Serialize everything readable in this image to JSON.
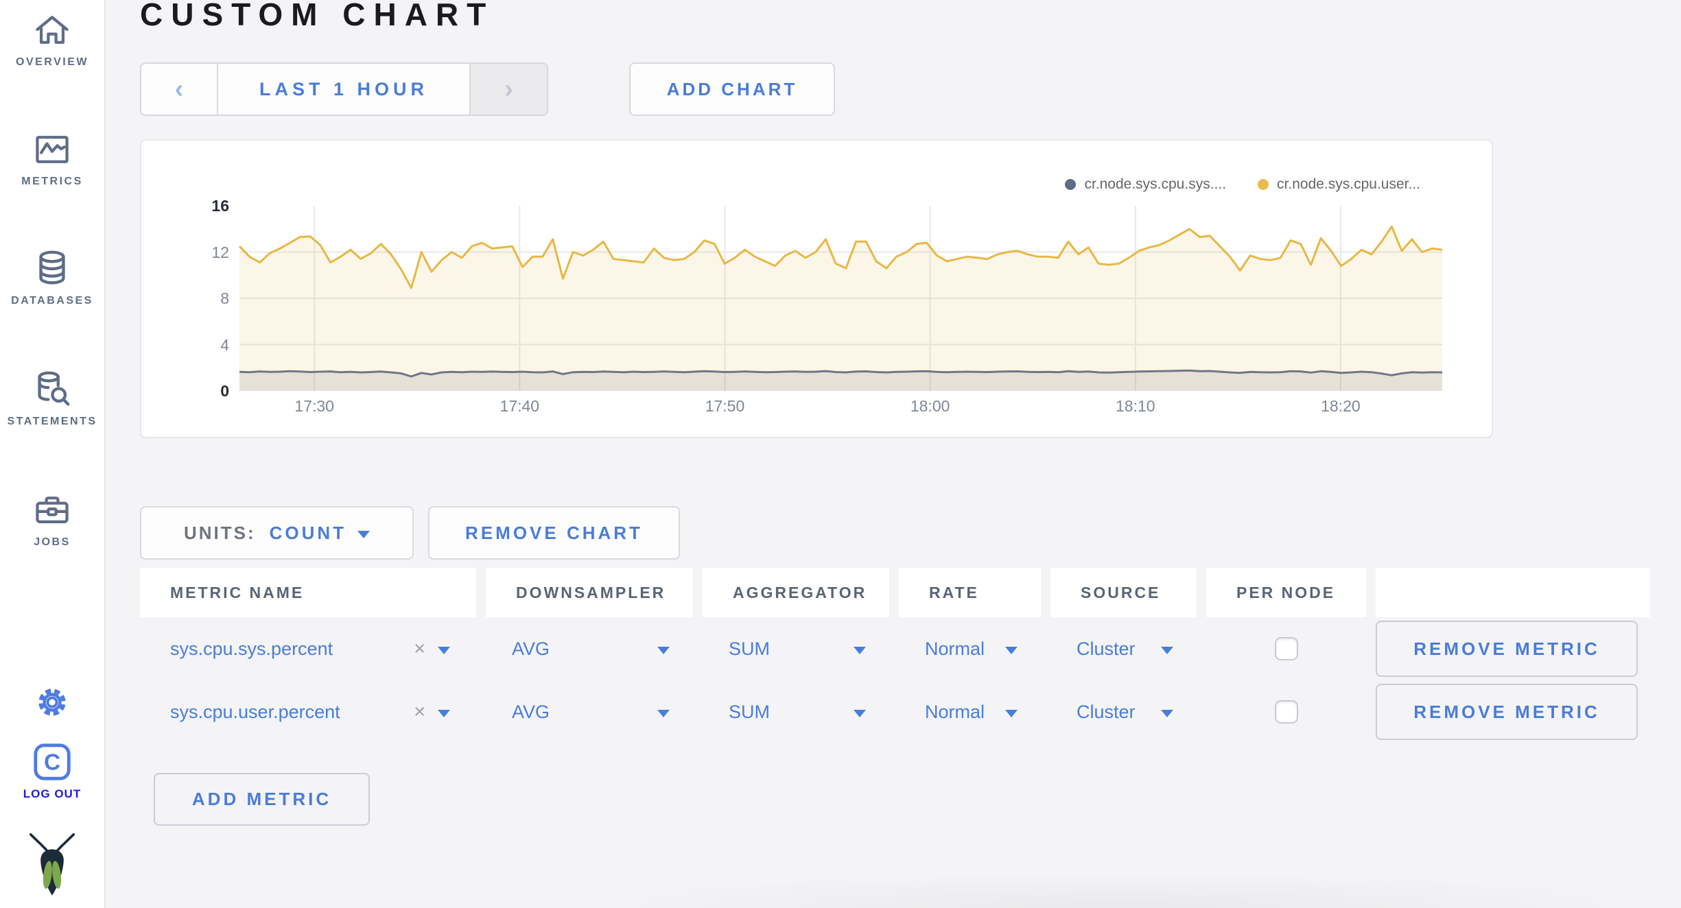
{
  "page": {
    "title": "CUSTOM CHART"
  },
  "sidebar": {
    "items": [
      {
        "label": "OVERVIEW"
      },
      {
        "label": "METRICS"
      },
      {
        "label": "DATABASES"
      },
      {
        "label": "STATEMENTS"
      },
      {
        "label": "JOBS"
      }
    ],
    "logout_label": "LOG OUT"
  },
  "toolbar": {
    "time_range": {
      "prev": "‹",
      "label": "LAST 1 HOUR",
      "next": "›"
    },
    "add_chart_label": "ADD CHART"
  },
  "chart_controls": {
    "units_label": "UNITS:",
    "units_value": "COUNT",
    "remove_chart_label": "REMOVE CHART",
    "add_metric_label": "ADD METRIC"
  },
  "metrics_table": {
    "columns": [
      "METRIC NAME",
      "DOWNSAMPLER",
      "AGGREGATOR",
      "RATE",
      "SOURCE",
      "PER NODE",
      ""
    ],
    "rows": [
      {
        "metric_name": "sys.cpu.sys.percent",
        "clear": "×",
        "downsampler": "AVG",
        "aggregator": "SUM",
        "rate": "Normal",
        "source": "Cluster",
        "per_node_checked": false,
        "remove_label": "REMOVE METRIC"
      },
      {
        "metric_name": "sys.cpu.user.percent",
        "clear": "×",
        "downsampler": "AVG",
        "aggregator": "SUM",
        "rate": "Normal",
        "source": "Cluster",
        "per_node_checked": false,
        "remove_label": "REMOVE METRIC"
      }
    ]
  },
  "chart_data": {
    "type": "area",
    "title": "",
    "xlabel": "",
    "ylabel": "",
    "ylim": [
      0,
      16
    ],
    "y_ticks": [
      0,
      4,
      8,
      12,
      16
    ],
    "x_tick_labels": [
      "17:30",
      "17:40",
      "17:50",
      "18:00",
      "18:10",
      "18:20"
    ],
    "x_tick_interval_min": 10,
    "x_first_tick_offset_min": 3.65,
    "x_total_min": 58.6,
    "interval_seconds": 30,
    "grid": true,
    "legend_position": "top-right",
    "series": [
      {
        "name": "cr.node.sys.cpu.sys....",
        "dot_color": "#5F6C87",
        "color": "#6E7787",
        "fill": "rgba(95,108,135,0.16)",
        "values": [
          1.65,
          1.62,
          1.68,
          1.64,
          1.66,
          1.7,
          1.67,
          1.63,
          1.66,
          1.68,
          1.62,
          1.65,
          1.6,
          1.63,
          1.67,
          1.6,
          1.52,
          1.25,
          1.55,
          1.42,
          1.6,
          1.65,
          1.62,
          1.66,
          1.64,
          1.67,
          1.65,
          1.63,
          1.66,
          1.62,
          1.6,
          1.68,
          1.45,
          1.62,
          1.65,
          1.63,
          1.67,
          1.64,
          1.62,
          1.66,
          1.63,
          1.65,
          1.68,
          1.64,
          1.62,
          1.66,
          1.7,
          1.67,
          1.63,
          1.65,
          1.68,
          1.64,
          1.61,
          1.63,
          1.66,
          1.68,
          1.64,
          1.66,
          1.71,
          1.63,
          1.6,
          1.67,
          1.69,
          1.63,
          1.6,
          1.64,
          1.66,
          1.69,
          1.7,
          1.65,
          1.62,
          1.64,
          1.66,
          1.64,
          1.63,
          1.66,
          1.68,
          1.69,
          1.65,
          1.63,
          1.64,
          1.62,
          1.7,
          1.65,
          1.67,
          1.6,
          1.59,
          1.61,
          1.64,
          1.67,
          1.69,
          1.7,
          1.72,
          1.74,
          1.76,
          1.7,
          1.72,
          1.66,
          1.6,
          1.55,
          1.64,
          1.61,
          1.6,
          1.62,
          1.7,
          1.68,
          1.58,
          1.7,
          1.64,
          1.56,
          1.6,
          1.66,
          1.62,
          1.5,
          1.35,
          1.52,
          1.62,
          1.58,
          1.62,
          1.6
        ]
      },
      {
        "name": "cr.node.sys.cpu.user...",
        "dot_color": "#EABB4D",
        "color": "#E7B844",
        "fill": "rgba(234,187,76,0.13)",
        "values": [
          12.5,
          11.6,
          11.1,
          11.9,
          12.3,
          12.8,
          13.3,
          13.35,
          12.6,
          11.1,
          11.6,
          12.2,
          11.4,
          11.9,
          12.7,
          11.8,
          10.5,
          8.9,
          12.0,
          10.3,
          11.3,
          12.0,
          11.5,
          12.5,
          12.8,
          12.3,
          12.4,
          12.5,
          10.7,
          11.6,
          11.6,
          13.1,
          9.7,
          12.0,
          11.7,
          12.2,
          12.9,
          11.4,
          11.3,
          11.2,
          11.1,
          12.3,
          11.5,
          11.3,
          11.4,
          12.0,
          13.0,
          12.7,
          11.0,
          11.5,
          12.2,
          11.6,
          11.2,
          10.8,
          11.7,
          12.1,
          11.5,
          12.0,
          13.1,
          11.0,
          10.6,
          12.9,
          12.9,
          11.2,
          10.6,
          11.6,
          12.0,
          12.7,
          12.8,
          11.7,
          11.2,
          11.4,
          11.6,
          11.5,
          11.4,
          11.8,
          12.0,
          12.1,
          11.8,
          11.6,
          11.6,
          11.5,
          12.9,
          11.8,
          12.4,
          11.0,
          10.9,
          11.0,
          11.5,
          12.1,
          12.4,
          12.6,
          13.0,
          13.5,
          14.0,
          13.3,
          13.4,
          12.5,
          11.6,
          10.4,
          11.7,
          11.4,
          11.3,
          11.5,
          13.0,
          12.7,
          10.9,
          13.2,
          12.1,
          10.8,
          11.4,
          12.2,
          11.8,
          12.9,
          14.2,
          12.1,
          13.1,
          12.0,
          12.3,
          12.2
        ]
      }
    ]
  },
  "colors": {
    "accent_blue": "#4A7CD9",
    "sidebar_icon": "#5F6C87",
    "logout_blue": "#1B1BE0",
    "page_bg": "#F4F4F6",
    "series_sys": "#5F6C87",
    "series_user": "#EABB4D"
  }
}
